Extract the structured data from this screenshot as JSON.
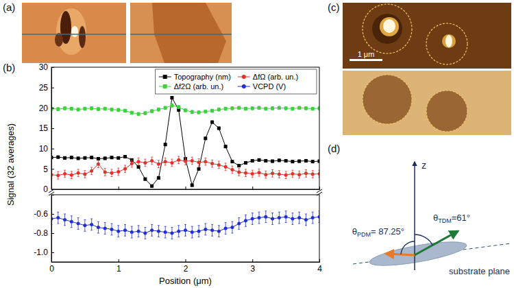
{
  "chart_data": [
    {
      "type": "line",
      "y_label": "Signal (32 averages)",
      "x": [
        0,
        0.1,
        0.2,
        0.3,
        0.4,
        0.5,
        0.6,
        0.7,
        0.8,
        0.9,
        1,
        1.1,
        1.2,
        1.3,
        1.4,
        1.5,
        1.6,
        1.7,
        1.8,
        1.9,
        2,
        2.1,
        2.2,
        2.3,
        2.4,
        2.5,
        2.6,
        2.7,
        2.8,
        2.9,
        3,
        3.1,
        3.2,
        3.3,
        3.4,
        3.5,
        3.6,
        3.7,
        3.8,
        3.9,
        4
      ],
      "xlim": [
        0,
        4
      ],
      "xticks": [
        0,
        1,
        2,
        3,
        4
      ],
      "ylim": [
        0,
        30
      ],
      "yticks": [
        0,
        5,
        10,
        15,
        20,
        25,
        30
      ],
      "tick_labels": "y",
      "legend": "upper right",
      "series": [
        {
          "name": "Topography (nm)",
          "color": "#000000",
          "marker": "square",
          "line_style": "solid",
          "values": [
            7.8,
            7.9,
            7.7,
            7.8,
            7.6,
            7.7,
            7.8,
            7.5,
            7.6,
            7.8,
            7.7,
            8.0,
            7.2,
            5.5,
            2.5,
            0.8,
            2.8,
            11.0,
            22.5,
            19.5,
            7.5,
            1.0,
            5.0,
            12.5,
            16.5,
            15.0,
            10.5,
            6.8,
            5.8,
            6.5,
            7.0,
            7.2,
            7.0,
            6.9,
            7.1,
            7.0,
            6.8,
            6.9,
            7.0,
            6.8,
            6.9
          ],
          "errors": [
            0.3,
            0.3,
            0.3,
            0.3,
            0.3,
            0.3,
            0.3,
            0.3,
            0.3,
            0.3,
            0.3,
            0.3,
            0.3,
            0.3,
            0.3,
            0.3,
            0.3,
            0.3,
            0.3,
            0.3,
            0.3,
            0.3,
            0.3,
            0.3,
            0.3,
            0.3,
            0.3,
            0.3,
            0.3,
            0.3,
            0.3,
            0.3,
            0.3,
            0.3,
            0.3,
            0.3,
            0.3,
            0.3,
            0.3,
            0.3,
            0.3
          ]
        },
        {
          "name": "ΔfΩ (arb. un.)",
          "color": "#e3312b",
          "marker": "circle",
          "line_style": "solid",
          "values": [
            3.6,
            3.4,
            3.8,
            3.5,
            4.0,
            3.7,
            4.5,
            6.2,
            4.2,
            4.0,
            4.3,
            5.0,
            6.3,
            6.8,
            6.5,
            7.0,
            6.2,
            6.8,
            6.5,
            7.2,
            6.9,
            7.0,
            6.6,
            6.8,
            6.3,
            6.0,
            5.5,
            4.8,
            4.2,
            4.0,
            3.8,
            4.1,
            3.6,
            3.9,
            3.7,
            3.5,
            3.8,
            3.6,
            3.9,
            3.7,
            3.8
          ],
          "errors": [
            0.9,
            0.9,
            0.9,
            0.9,
            0.9,
            0.9,
            0.9,
            0.9,
            0.9,
            0.9,
            0.9,
            0.9,
            0.9,
            0.9,
            0.9,
            0.9,
            0.9,
            0.9,
            0.9,
            0.9,
            0.9,
            0.9,
            0.9,
            0.9,
            0.9,
            0.9,
            0.9,
            0.9,
            0.9,
            0.9,
            0.9,
            0.9,
            0.9,
            0.9,
            0.9,
            0.9,
            0.9,
            0.9,
            0.9,
            0.9,
            0.9
          ]
        },
        {
          "name": "Δf2Ω (arb. un.)",
          "color": "#3ed23e",
          "marker": "square",
          "line_style": "solid",
          "values": [
            19.8,
            19.7,
            19.9,
            19.8,
            19.6,
            19.8,
            19.9,
            19.7,
            19.8,
            19.6,
            19.5,
            19.3,
            18.8,
            18.5,
            18.7,
            19.2,
            19.6,
            20.0,
            20.6,
            20.2,
            19.4,
            19.0,
            18.9,
            19.1,
            19.3,
            19.6,
            19.8,
            19.9,
            20.0,
            19.8,
            19.9,
            20.0,
            19.8,
            19.9,
            20.0,
            19.9,
            19.8,
            20.0,
            19.9,
            19.8,
            19.9
          ],
          "errors": [
            0.4,
            0.4,
            0.4,
            0.4,
            0.4,
            0.4,
            0.4,
            0.4,
            0.4,
            0.4,
            0.4,
            0.4,
            0.4,
            0.4,
            0.4,
            0.4,
            0.4,
            0.4,
            0.4,
            0.4,
            0.4,
            0.4,
            0.4,
            0.4,
            0.4,
            0.4,
            0.4,
            0.4,
            0.4,
            0.4,
            0.4,
            0.4,
            0.4,
            0.4,
            0.4,
            0.4,
            0.4,
            0.4,
            0.4,
            0.4,
            0.4
          ]
        }
      ]
    },
    {
      "type": "line",
      "x_label": "Position (μm)",
      "x": [
        0,
        0.1,
        0.2,
        0.3,
        0.4,
        0.5,
        0.6,
        0.7,
        0.8,
        0.9,
        1,
        1.1,
        1.2,
        1.3,
        1.4,
        1.5,
        1.6,
        1.7,
        1.8,
        1.9,
        2,
        2.1,
        2.2,
        2.3,
        2.4,
        2.5,
        2.6,
        2.7,
        2.8,
        2.9,
        3,
        3.1,
        3.2,
        3.3,
        3.4,
        3.5,
        3.6,
        3.7,
        3.8,
        3.9,
        4
      ],
      "xlim": [
        0,
        4
      ],
      "xticks": [
        0,
        1,
        2,
        3,
        4
      ],
      "ylim": [
        -1.1,
        -0.4
      ],
      "yticks": [
        {
          "value": -1,
          "label": "-1.0"
        },
        -0.8,
        -0.6
      ],
      "series": [
        {
          "name": "VCPD (V)",
          "color": "#1f2fd0",
          "marker": "circle",
          "line_style": "solid",
          "values": [
            -0.65,
            -0.64,
            -0.66,
            -0.68,
            -0.7,
            -0.72,
            -0.71,
            -0.74,
            -0.75,
            -0.76,
            -0.78,
            -0.77,
            -0.79,
            -0.78,
            -0.8,
            -0.77,
            -0.78,
            -0.79,
            -0.8,
            -0.78,
            -0.77,
            -0.79,
            -0.78,
            -0.76,
            -0.77,
            -0.78,
            -0.75,
            -0.74,
            -0.7,
            -0.67,
            -0.65,
            -0.64,
            -0.63,
            -0.65,
            -0.64,
            -0.63,
            -0.65,
            -0.64,
            -0.66,
            -0.64,
            -0.63
          ],
          "errors": [
            0.06,
            0.06,
            0.06,
            0.06,
            0.06,
            0.06,
            0.06,
            0.06,
            0.06,
            0.06,
            0.06,
            0.06,
            0.06,
            0.06,
            0.06,
            0.06,
            0.06,
            0.06,
            0.06,
            0.06,
            0.06,
            0.06,
            0.06,
            0.06,
            0.06,
            0.06,
            0.06,
            0.06,
            0.06,
            0.06,
            0.06,
            0.06,
            0.06,
            0.06,
            0.06,
            0.06,
            0.06,
            0.06,
            0.06,
            0.06,
            0.06
          ]
        }
      ]
    }
  ],
  "panel_labels": [
    "(a)",
    "(b)",
    "(c)",
    "(d)"
  ],
  "panel_c": {
    "scale_bar": "1 μm"
  },
  "panel_d": {
    "axis_label": "z",
    "plane_label": "substrate plane",
    "angles": [
      {
        "symbol": "θ",
        "subscript": "PDM",
        "relation": "= ",
        "value": 87.25,
        "unit": "°",
        "color": "#e8782a"
      },
      {
        "symbol": "θ",
        "subscript": "TDM",
        "relation": "=",
        "value": 61,
        "unit": "°",
        "color": "#1f7a3a"
      }
    ]
  }
}
